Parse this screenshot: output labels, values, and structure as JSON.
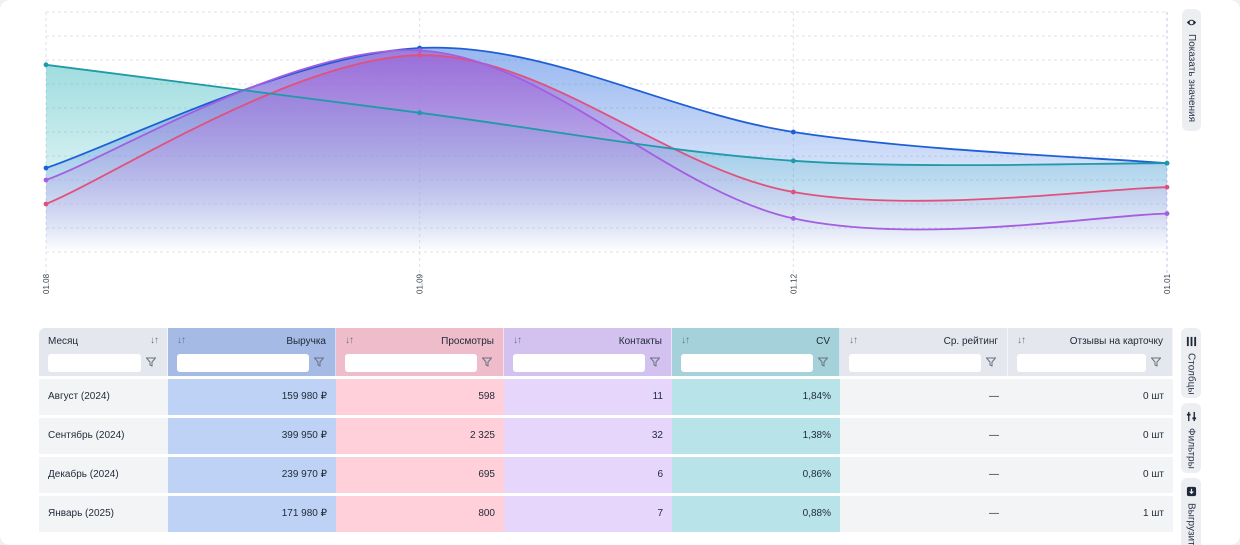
{
  "chart_data": {
    "type": "area",
    "x": [
      "01.08",
      "01.09",
      "01.12",
      "01.01"
    ],
    "ylim": [
      0,
      100
    ],
    "grid": true,
    "series": [
      {
        "name": "Выручка",
        "color": "#1f5fd6",
        "values": [
          35,
          85,
          50,
          37
        ]
      },
      {
        "name": "Просмотры",
        "color": "#e0527e",
        "values": [
          20,
          82,
          25,
          27
        ]
      },
      {
        "name": "Контакты",
        "color": "#a45ee0",
        "values": [
          30,
          84,
          14,
          16
        ]
      },
      {
        "name": "CV",
        "color": "#1f9aa8",
        "values": [
          78,
          58,
          38,
          37
        ]
      }
    ]
  },
  "controls": {
    "show_values": "Показать значения",
    "columns": "Столбцы",
    "filters": "Фильтры",
    "export": "Выгрузить"
  },
  "table": {
    "columns": [
      {
        "label": "Месяц",
        "bg": "#e5e7ee",
        "align": "left"
      },
      {
        "label": "Выручка",
        "bg": "#a5bbe6",
        "align": "right"
      },
      {
        "label": "Просмотры",
        "bg": "#eebcca",
        "align": "right"
      },
      {
        "label": "Контакты",
        "bg": "#d3c2f0",
        "align": "right"
      },
      {
        "label": "CV",
        "bg": "#a5d1db",
        "align": "right"
      },
      {
        "label": "Ср. рейтинг",
        "bg": "#e5e7ee",
        "align": "right"
      },
      {
        "label": "Отзывы на карточку",
        "bg": "#e5e7ee",
        "align": "right"
      }
    ],
    "cell_bg": [
      "#f3f4f6",
      "#bdd2f4",
      "#ffd0da",
      "#e6d6fb",
      "#b8e4e9",
      "#f3f4f6",
      "#f3f4f6"
    ],
    "rows": [
      [
        "Август (2024)",
        "159 980 ₽",
        "598",
        "11",
        "1,84%",
        "—",
        "0 шт"
      ],
      [
        "Сентябрь (2024)",
        "399 950 ₽",
        "2 325",
        "32",
        "1,38%",
        "—",
        "0 шт"
      ],
      [
        "Декабрь (2024)",
        "239 970 ₽",
        "695",
        "6",
        "0,86%",
        "—",
        "0 шт"
      ],
      [
        "Январь (2025)",
        "171 980 ₽",
        "800",
        "7",
        "0,88%",
        "—",
        "1 шт"
      ]
    ]
  }
}
